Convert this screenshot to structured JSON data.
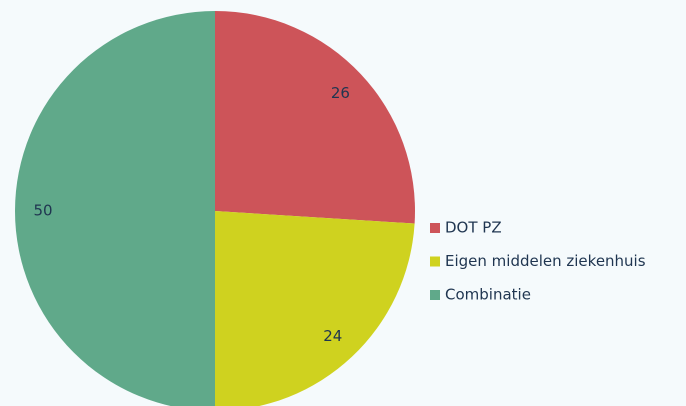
{
  "chart_data": {
    "type": "pie",
    "categories": [
      "DOT PZ",
      "Eigen middelen ziekenhuis",
      "Combinatie"
    ],
    "values": [
      26,
      24,
      50
    ],
    "colors": [
      "#cd5459",
      "#cfd21f",
      "#60a98a"
    ],
    "legend": "right"
  }
}
